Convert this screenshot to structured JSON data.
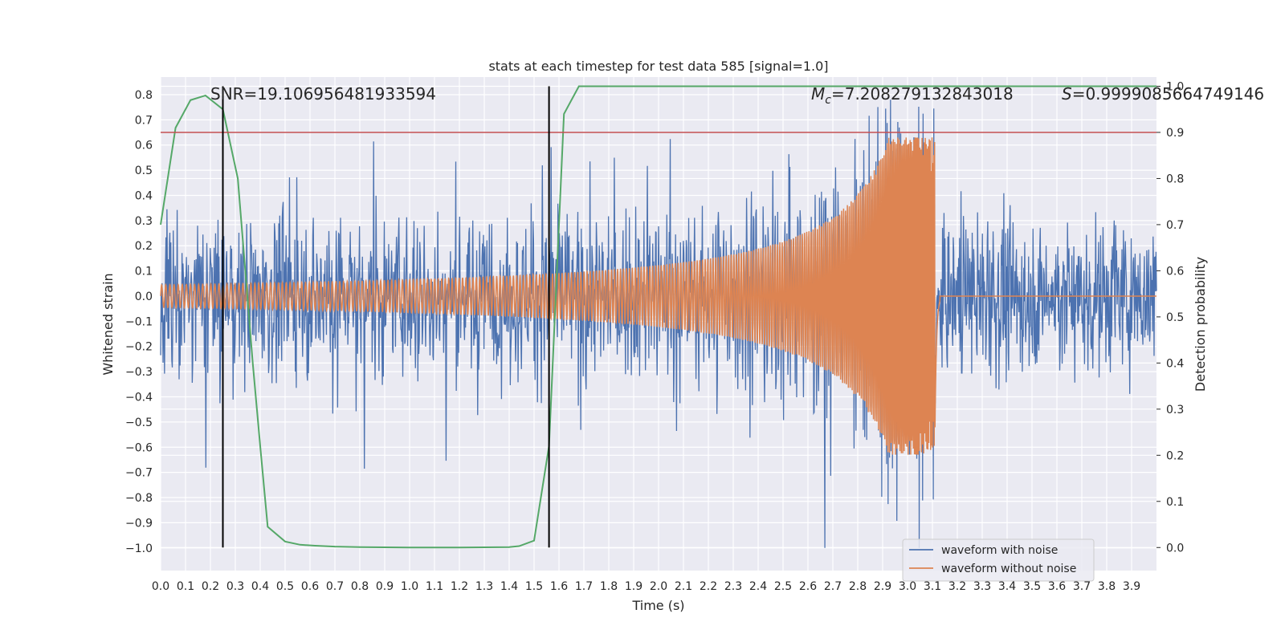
{
  "chart_data": {
    "type": "line",
    "title": "stats at each timestep for test data 585 [signal=1.0]",
    "xlabel": "Time (s)",
    "ylabel": "Whitened strain",
    "y2label": "Detection probability",
    "xlim": [
      0.0,
      4.0
    ],
    "ylim": [
      -1.09,
      0.87
    ],
    "y2lim": [
      -0.05,
      1.02
    ],
    "xticks": [
      "0.0",
      "0.1",
      "0.2",
      "0.3",
      "0.4",
      "0.5",
      "0.6",
      "0.7",
      "0.8",
      "0.9",
      "1.0",
      "1.1",
      "1.2",
      "1.3",
      "1.4",
      "1.5",
      "1.6",
      "1.7",
      "1.8",
      "1.9",
      "2.0",
      "2.1",
      "2.2",
      "2.3",
      "2.4",
      "2.5",
      "2.6",
      "2.7",
      "2.8",
      "2.9",
      "3.0",
      "3.1",
      "3.2",
      "3.3",
      "3.4",
      "3.5",
      "3.6",
      "3.7",
      "3.8",
      "3.9"
    ],
    "yticks": [
      "0.8",
      "0.7",
      "0.6",
      "0.5",
      "0.4",
      "0.3",
      "0.2",
      "0.1",
      "0.0",
      "−0.1",
      "−0.2",
      "−0.3",
      "−0.4",
      "−0.5",
      "−0.6",
      "−0.7",
      "−0.8",
      "−0.9",
      "−1.0"
    ],
    "y2ticks": [
      "1.0",
      "0.9",
      "0.8",
      "0.7",
      "0.6",
      "0.5",
      "0.4",
      "0.3",
      "0.2",
      "0.1",
      "0.0"
    ],
    "grid": true,
    "legend_position": "bottom-right",
    "annotations": {
      "snr": "SNR=19.106956481933594",
      "mc_symbol": "M",
      "mc_sub": "c",
      "mc_value": "=7.208279132843018",
      "s_symbol": "S",
      "s_value": "=0.9999085664749146"
    },
    "series": [
      {
        "name": "waveform with noise",
        "color": "#4c72b0",
        "axis": "left",
        "description_samples": 2048
      },
      {
        "name": "waveform without noise",
        "color": "#dd8452",
        "axis": "left",
        "merger_time": 3.1,
        "amp_start": 0.045,
        "amp_peak": 0.63
      },
      {
        "color": "#55a868",
        "axis": "right",
        "x": [
          0.0,
          0.06,
          0.12,
          0.18,
          0.25,
          0.31,
          0.37,
          0.4,
          0.43,
          0.5,
          0.56,
          0.62,
          0.7,
          0.8,
          1.0,
          1.2,
          1.4,
          1.44,
          1.5,
          1.56,
          1.62,
          1.68,
          2.0,
          2.5,
          3.0,
          3.5,
          4.0
        ],
        "y": [
          0.7,
          0.91,
          0.97,
          0.98,
          0.95,
          0.8,
          0.4,
          0.22,
          0.045,
          0.013,
          0.006,
          0.004,
          0.002,
          0.001,
          0.0,
          0.0,
          0.001,
          0.003,
          0.015,
          0.22,
          0.94,
          1.0,
          1.0,
          1.0,
          1.0,
          1.0,
          1.0
        ]
      }
    ],
    "hlines": [
      {
        "y2": 0.9,
        "color": "#c44e52"
      }
    ],
    "vlines": [
      {
        "x": 0.25,
        "color": "#000000"
      },
      {
        "x": 1.56,
        "color": "#000000"
      }
    ]
  }
}
